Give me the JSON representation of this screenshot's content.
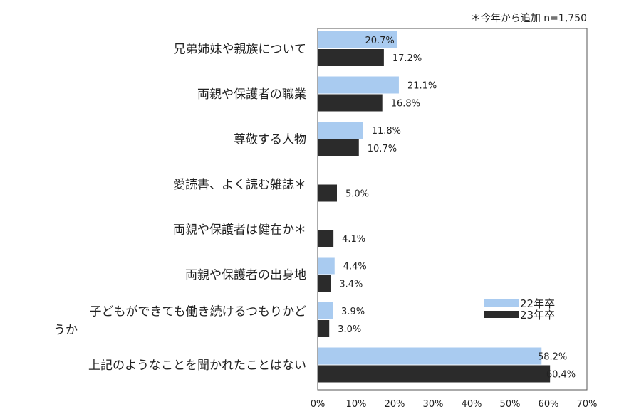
{
  "chart_data": {
    "type": "bar",
    "orientation": "horizontal",
    "note": "＊今年から追加 n=1,750",
    "categories": [
      [
        "兄弟姉妹や親族について"
      ],
      [
        "両親や保護者の職業"
      ],
      [
        "尊敬する人物"
      ],
      [
        "愛読書、よく読む雑誌＊"
      ],
      [
        "両親や保護者は健在か＊"
      ],
      [
        "両親や保護者の出身地"
      ],
      [
        "子どもができても働き続けるつもりかど",
        "うか"
      ],
      [
        "上記のようなことを聞かれたことはない"
      ]
    ],
    "series": [
      {
        "name": "22年卒",
        "color": "#a9cbf0",
        "values": [
          20.7,
          21.1,
          11.8,
          null,
          null,
          4.4,
          3.9,
          58.2
        ],
        "labels": [
          "20.7%",
          "21.1%",
          "11.8%",
          "",
          "",
          "4.4%",
          "3.9%",
          "58.2%"
        ]
      },
      {
        "name": "23年卒",
        "color": "#2b2b2b",
        "values": [
          17.2,
          16.8,
          10.7,
          5.0,
          4.1,
          3.4,
          3.0,
          60.4
        ],
        "labels": [
          "17.2%",
          "16.8%",
          "10.7%",
          "5.0%",
          "4.1%",
          "3.4%",
          "3.0%",
          "60.4%"
        ]
      }
    ],
    "xlim": [
      0,
      70
    ],
    "xticks": [
      "0%",
      "10%",
      "20%",
      "30%",
      "40%",
      "50%",
      "60%",
      "70%"
    ],
    "legend": "bottom-right, inside plot"
  }
}
